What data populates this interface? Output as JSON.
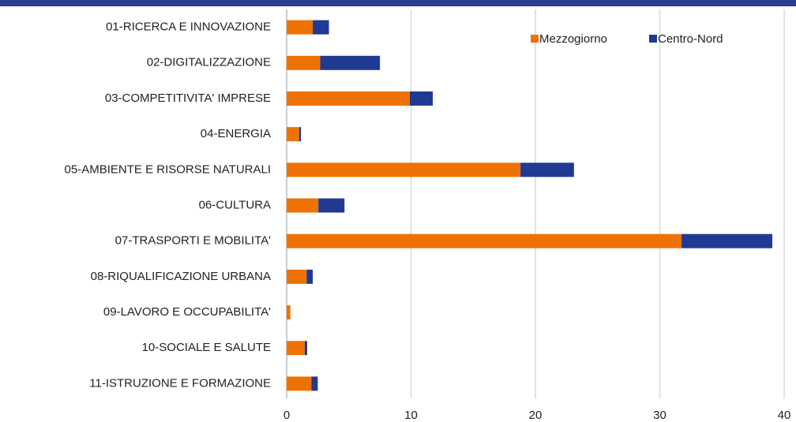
{
  "chart_data": {
    "type": "stacked-barh",
    "categories": [
      "01-RICERCA E INNOVAZIONE",
      "02-DIGITALIZZAZIONE",
      "03-COMPETITIVITA' IMPRESE",
      "04-ENERGIA",
      "05-AMBIENTE E RISORSE NATURALI",
      "06-CULTURA",
      "07-TRASPORTI E MOBILITA'",
      "08-RIQUALIFICAZIONE URBANA",
      "09-LAVORO E OCCUPABILITA'",
      "10-SOCIALE E SALUTE",
      "11-ISTRUZIONE E FORMAZIONE"
    ],
    "series": [
      {
        "name": "Mezzogiorno",
        "color": "#ee7203",
        "values": [
          2.1,
          2.7,
          9.9,
          1.0,
          18.8,
          2.55,
          31.75,
          1.6,
          0.3,
          1.45,
          2.0
        ]
      },
      {
        "name": "Centro-Nord",
        "color": "#203a93",
        "values": [
          1.3,
          4.8,
          1.85,
          0.15,
          4.3,
          2.1,
          7.3,
          0.5,
          0,
          0.2,
          0.5
        ]
      }
    ],
    "xlim": [
      0,
      40
    ],
    "xticks": [
      0,
      10,
      20,
      30,
      40
    ],
    "grid": true,
    "legend": "top-right"
  }
}
